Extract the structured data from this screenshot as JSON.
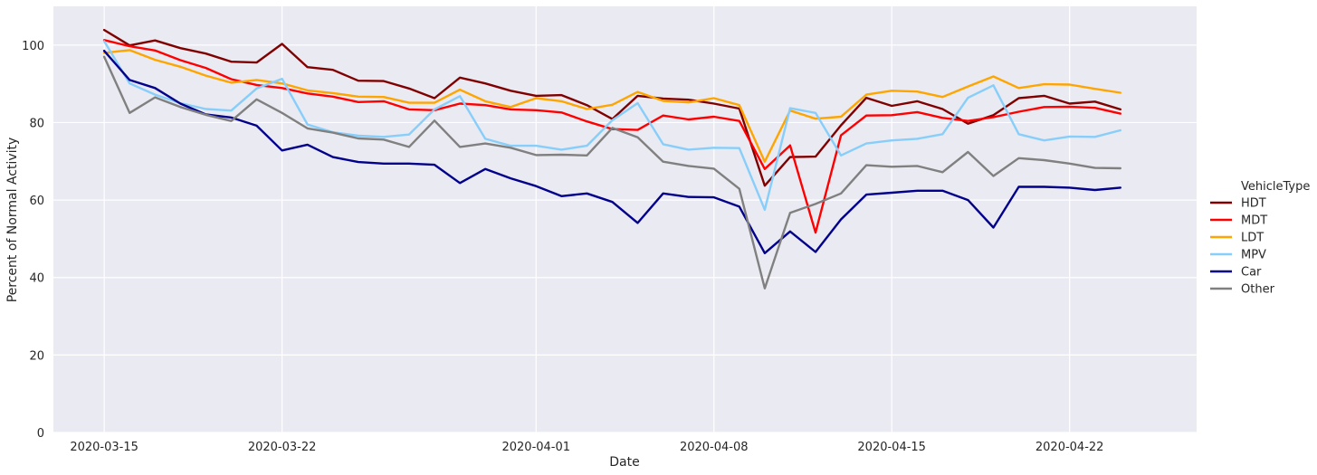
{
  "chart_data": {
    "type": "line",
    "xlabel": "Date",
    "ylabel": "Percent of Normal Activity",
    "x_axis": "date",
    "x_start": "2020-03-15",
    "x_end": "2020-04-25",
    "xlim": [
      "2020-03-13",
      "2020-04-27"
    ],
    "ylim": [
      0,
      110
    ],
    "x_ticks": [
      "2020-03-15",
      "2020-03-22",
      "2020-04-01",
      "2020-04-08",
      "2020-04-15",
      "2020-04-22"
    ],
    "y_ticks": [
      0,
      20,
      40,
      60,
      80,
      100
    ],
    "grid": true,
    "legend": {
      "title": "VehicleType",
      "placement": "right"
    },
    "series": [
      {
        "name": "HDT",
        "color": "#800000",
        "values": [
          103.9,
          99.9,
          101.2,
          99.2,
          97.8,
          95.7,
          95.5,
          100.3,
          94.3,
          93.6,
          90.8,
          90.7,
          88.8,
          86.3,
          91.6,
          90.1,
          88.2,
          86.9,
          87.1,
          84.5,
          80.9,
          86.9,
          86.2,
          85.9,
          84.9,
          83.6,
          63.7,
          71.1,
          71.2,
          79.3,
          86.4,
          84.3,
          85.5,
          83.5,
          79.7,
          81.9,
          86.3,
          86.9,
          84.9,
          85.4,
          83.4
        ]
      },
      {
        "name": "MDT",
        "color": "#ff0000",
        "values": [
          101.3,
          99.7,
          98.6,
          96.1,
          94.1,
          91.2,
          89.7,
          88.9,
          87.5,
          86.7,
          85.3,
          85.5,
          83.4,
          83.2,
          84.9,
          84.5,
          83.4,
          83.2,
          82.6,
          80.3,
          78.3,
          78.1,
          81.8,
          80.8,
          81.5,
          80.4,
          68.0,
          74.1,
          51.6,
          76.7,
          81.8,
          81.9,
          82.7,
          81.2,
          80.4,
          81.4,
          82.8,
          84.0,
          84.1,
          83.8,
          82.3
        ]
      },
      {
        "name": "LDT",
        "color": "#ffa500",
        "values": [
          98.0,
          98.7,
          96.2,
          94.4,
          92.1,
          90.3,
          91.0,
          90.1,
          88.3,
          87.6,
          86.7,
          86.6,
          85.1,
          85.1,
          88.5,
          85.5,
          84.0,
          86.3,
          85.5,
          83.5,
          84.6,
          87.9,
          85.6,
          85.2,
          86.3,
          84.5,
          69.9,
          83.1,
          81.0,
          81.5,
          87.2,
          88.2,
          88.0,
          86.6,
          89.3,
          91.9,
          88.9,
          89.9,
          89.8,
          88.7,
          87.7
        ]
      },
      {
        "name": "MPV",
        "color": "#87cefa",
        "values": [
          101.0,
          90.1,
          87.2,
          85.0,
          83.5,
          83.1,
          88.8,
          91.3,
          79.5,
          77.5,
          76.6,
          76.3,
          76.9,
          83.4,
          86.8,
          75.8,
          74.0,
          74.0,
          73.0,
          74.0,
          80.6,
          85.0,
          74.4,
          73.0,
          73.5,
          73.4,
          57.5,
          83.7,
          82.5,
          71.5,
          74.6,
          75.4,
          75.8,
          77.0,
          86.4,
          89.6,
          77.0,
          75.4,
          76.4,
          76.3,
          78.0
        ]
      },
      {
        "name": "Car",
        "color": "#00008b",
        "values": [
          98.5,
          91.0,
          88.9,
          84.9,
          82.1,
          81.3,
          79.2,
          72.8,
          74.3,
          71.1,
          69.8,
          69.4,
          69.4,
          69.1,
          64.4,
          68.0,
          65.6,
          63.6,
          61.0,
          61.7,
          59.5,
          54.1,
          61.7,
          60.8,
          60.7,
          58.3,
          46.3,
          51.9,
          46.6,
          55.0,
          61.4,
          61.9,
          62.4,
          62.4,
          60.0,
          52.9,
          63.4,
          63.4,
          63.2,
          62.6,
          63.2
        ]
      },
      {
        "name": "Other",
        "color": "#808080",
        "values": [
          97.0,
          82.5,
          86.5,
          84.0,
          82.0,
          80.4,
          86.0,
          82.5,
          78.5,
          77.4,
          75.9,
          75.6,
          73.7,
          80.5,
          73.7,
          74.6,
          73.5,
          71.6,
          71.7,
          71.5,
          78.6,
          76.2,
          69.9,
          68.8,
          68.1,
          62.9,
          37.2,
          56.7,
          59.0,
          61.7,
          69.0,
          68.6,
          68.8,
          67.2,
          72.4,
          66.2,
          70.8,
          70.3,
          69.4,
          68.3,
          68.2
        ]
      }
    ]
  }
}
